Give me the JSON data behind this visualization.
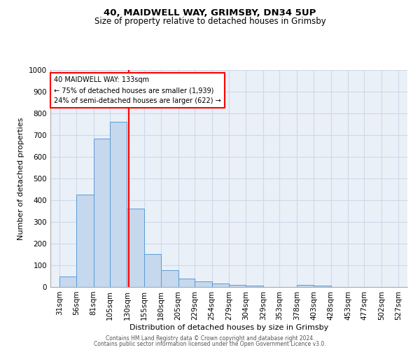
{
  "title1": "40, MAIDWELL WAY, GRIMSBY, DN34 5UP",
  "title2": "Size of property relative to detached houses in Grimsby",
  "xlabel": "Distribution of detached houses by size in Grimsby",
  "ylabel": "Number of detached properties",
  "bar_left_edges": [
    31,
    56,
    81,
    105,
    130,
    155,
    180,
    205,
    229,
    254,
    279,
    304,
    329,
    353,
    378,
    403,
    428,
    453,
    477,
    502
  ],
  "bar_heights": [
    50,
    425,
    685,
    760,
    360,
    152,
    77,
    40,
    27,
    15,
    10,
    8,
    0,
    0,
    10,
    8,
    0,
    0,
    0,
    0
  ],
  "bar_widths": [
    25,
    25,
    24,
    25,
    25,
    25,
    25,
    24,
    25,
    25,
    25,
    25,
    24,
    25,
    25,
    25,
    25,
    24,
    25,
    25
  ],
  "bar_color": "#c5d8ed",
  "bar_edge_color": "#5b9bd5",
  "x_tick_labels": [
    "31sqm",
    "56sqm",
    "81sqm",
    "105sqm",
    "130sqm",
    "155sqm",
    "180sqm",
    "205sqm",
    "229sqm",
    "254sqm",
    "279sqm",
    "304sqm",
    "329sqm",
    "353sqm",
    "378sqm",
    "403sqm",
    "428sqm",
    "453sqm",
    "477sqm",
    "502sqm",
    "527sqm"
  ],
  "x_tick_positions": [
    31,
    56,
    81,
    105,
    130,
    155,
    180,
    205,
    229,
    254,
    279,
    304,
    329,
    353,
    378,
    403,
    428,
    453,
    477,
    502,
    527
  ],
  "ylim": [
    0,
    1000
  ],
  "xlim": [
    18,
    540
  ],
  "red_line_x": 133,
  "annotation_lines": [
    "40 MAIDWELL WAY: 133sqm",
    "← 75% of detached houses are smaller (1,939)",
    "24% of semi-detached houses are larger (622) →"
  ],
  "grid_color": "#d0d8e8",
  "background_color": "#eaf0f8",
  "footer_line1": "Contains HM Land Registry data © Crown copyright and database right 2024.",
  "footer_line2": "Contains public sector information licensed under the Open Government Licence v3.0."
}
